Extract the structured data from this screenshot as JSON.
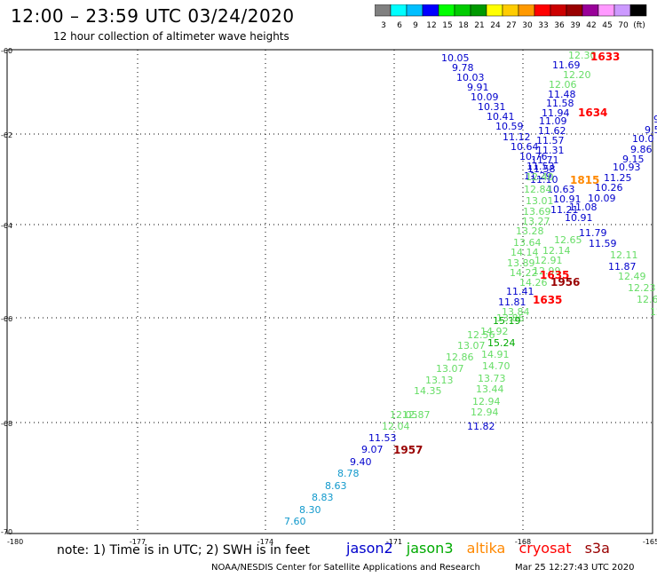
{
  "header": {
    "title": "12:00 – 23:59 UTC 03/24/2020",
    "subtitle": "12 hour collection of altimeter wave heights"
  },
  "color_scale": {
    "labels": [
      "3",
      "6",
      "9",
      "12",
      "15",
      "18",
      "21",
      "24",
      "27",
      "30",
      "33",
      "36",
      "39",
      "42",
      "45",
      "70",
      "(ft)"
    ],
    "colors": [
      "#808080",
      "#00ffff",
      "#00bfff",
      "#0000ff",
      "#00ff00",
      "#00cc00",
      "#009900",
      "#ffff00",
      "#ffcc00",
      "#ff9900",
      "#ff0000",
      "#cc0000",
      "#990000",
      "#990099",
      "#ff99ff",
      "#cc99ff",
      "#000000"
    ]
  },
  "map": {
    "lat_labels": [
      "-60",
      "-62",
      "-64",
      "-66",
      "-68",
      "-70"
    ],
    "lon_labels": [
      "-180",
      "-177",
      "-174",
      "-171",
      "-168",
      "-165"
    ]
  },
  "sats": {
    "jason2": "#0000cc",
    "jason3": "#00aa00",
    "altika": "#ff8800",
    "cryosat": "#ff0000",
    "s3a": "#990000",
    "light": "#66dd66",
    "cyan": "#1199cc"
  },
  "soundings": [
    {
      "t": "10.05",
      "c": "jason2"
    },
    {
      "t": "9.78",
      "c": "jason2"
    },
    {
      "t": "10.03",
      "c": "jason2"
    },
    {
      "t": "9.91",
      "c": "jason2"
    },
    {
      "t": "10.09",
      "c": "jason2"
    },
    {
      "t": "10.31",
      "c": "jason2"
    },
    {
      "t": "10.41",
      "c": "jason2"
    },
    {
      "t": "10.59",
      "c": "jason2"
    },
    {
      "t": "11.12",
      "c": "jason2"
    },
    {
      "t": "10.64",
      "c": "jason2"
    },
    {
      "t": "10.76",
      "c": "jason2"
    },
    {
      "t": "11.53",
      "c": "jason2"
    },
    {
      "t": "11.29",
      "c": "jason2"
    },
    {
      "t": "12.30",
      "c": "light"
    },
    {
      "t": "11.69",
      "c": "jason2"
    },
    {
      "t": "12.20",
      "c": "light"
    },
    {
      "t": "12.06",
      "c": "light"
    },
    {
      "t": "11.48",
      "c": "jason2"
    },
    {
      "t": "11.58",
      "c": "jason2"
    },
    {
      "t": "11.94",
      "c": "jason2"
    },
    {
      "t": "11.09",
      "c": "jason2"
    },
    {
      "t": "11.62",
      "c": "jason2"
    },
    {
      "t": "11.57",
      "c": "jason2"
    },
    {
      "t": "11.31",
      "c": "jason2"
    },
    {
      "t": "11.71",
      "c": "jason2"
    },
    {
      "t": "11.58",
      "c": "jason2"
    },
    {
      "t": "11.10",
      "c": "jason2"
    },
    {
      "t": "10.63",
      "c": "jason2"
    },
    {
      "t": "10.91",
      "c": "jason2"
    },
    {
      "t": "11.21",
      "c": "jason2"
    },
    {
      "t": "11.08",
      "c": "jason2"
    },
    {
      "t": "10.91",
      "c": "jason2"
    },
    {
      "t": "9.",
      "c": "jason2"
    },
    {
      "t": "9.5",
      "c": "jason2"
    },
    {
      "t": "10.0",
      "c": "jason2"
    },
    {
      "t": "9.86",
      "c": "jason2"
    },
    {
      "t": "9.15",
      "c": "jason2"
    },
    {
      "t": "10.93",
      "c": "jason2"
    },
    {
      "t": "11.25",
      "c": "jason2"
    },
    {
      "t": "10.26",
      "c": "jason2"
    },
    {
      "t": "10.09",
      "c": "jason2"
    },
    {
      "t": "11.79",
      "c": "jason2"
    },
    {
      "t": "11.59",
      "c": "jason2"
    },
    {
      "t": "12.11",
      "c": "light"
    },
    {
      "t": "11.87",
      "c": "jason2"
    },
    {
      "t": "12.49",
      "c": "light"
    },
    {
      "t": "12.23",
      "c": "light"
    },
    {
      "t": "12.6",
      "c": "light"
    },
    {
      "t": "12",
      "c": "light"
    },
    {
      "t": "12.40",
      "c": "light"
    },
    {
      "t": "12.84",
      "c": "light"
    },
    {
      "t": "13.01",
      "c": "light"
    },
    {
      "t": "13.69",
      "c": "light"
    },
    {
      "t": "13.27",
      "c": "light"
    },
    {
      "t": "13.28",
      "c": "light"
    },
    {
      "t": "13.64",
      "c": "light"
    },
    {
      "t": "14.14",
      "c": "light"
    },
    {
      "t": "13.89",
      "c": "light"
    },
    {
      "t": "14.22",
      "c": "light"
    },
    {
      "t": "14.26",
      "c": "light"
    },
    {
      "t": "11.41",
      "c": "jason2"
    },
    {
      "t": "11.81",
      "c": "jason2"
    },
    {
      "t": "13.84",
      "c": "light"
    },
    {
      "t": "13.86",
      "c": "light"
    },
    {
      "t": "15.19",
      "c": "jason3"
    },
    {
      "t": "14.92",
      "c": "light"
    },
    {
      "t": "12.56",
      "c": "light"
    },
    {
      "t": "15.24",
      "c": "jason3"
    },
    {
      "t": "13.07",
      "c": "light"
    },
    {
      "t": "14.91",
      "c": "light"
    },
    {
      "t": "12.86",
      "c": "light"
    },
    {
      "t": "14.70",
      "c": "light"
    },
    {
      "t": "13.07",
      "c": "light"
    },
    {
      "t": "13.73",
      "c": "light"
    },
    {
      "t": "13.13",
      "c": "light"
    },
    {
      "t": "13.44",
      "c": "light"
    },
    {
      "t": "14.35",
      "c": "light"
    },
    {
      "t": "12.94",
      "c": "light"
    },
    {
      "t": "12.87",
      "c": "light"
    },
    {
      "t": "12.94",
      "c": "light"
    },
    {
      "t": "12.05",
      "c": "light"
    },
    {
      "t": "11.82",
      "c": "jason2"
    },
    {
      "t": "12.04",
      "c": "light"
    },
    {
      "t": "11.53",
      "c": "jason2"
    },
    {
      "t": "9.07",
      "c": "jason2"
    },
    {
      "t": "9.40",
      "c": "jason2"
    },
    {
      "t": "8.78",
      "c": "cyan"
    },
    {
      "t": "8.63",
      "c": "cyan"
    },
    {
      "t": "8.83",
      "c": "cyan"
    },
    {
      "t": "8.30",
      "c": "cyan"
    },
    {
      "t": "7.60",
      "c": "cyan"
    },
    {
      "t": "12.65",
      "c": "light"
    },
    {
      "t": "12.14",
      "c": "light"
    },
    {
      "t": "12.91",
      "c": "light"
    },
    {
      "t": "12.99",
      "c": "light"
    }
  ],
  "times": [
    {
      "t": "1633",
      "c": "cryosat"
    },
    {
      "t": "1634",
      "c": "cryosat"
    },
    {
      "t": "1815",
      "c": "altika"
    },
    {
      "t": "1635",
      "c": "cryosat"
    },
    {
      "t": "1956",
      "c": "s3a"
    },
    {
      "t": "1635",
      "c": "cryosat"
    },
    {
      "t": "1957",
      "c": "s3a"
    }
  ],
  "legend": [
    "jason2",
    "jason3",
    "altika",
    "cryosat",
    "s3a"
  ],
  "footer": {
    "note": "note: 1) Time is in UTC; 2) SWH is in feet",
    "credit": "NOAA/NESDIS Center for Satellite Applications and Research",
    "stamp": "Mar 25 12:27:43 UTC 2020"
  }
}
